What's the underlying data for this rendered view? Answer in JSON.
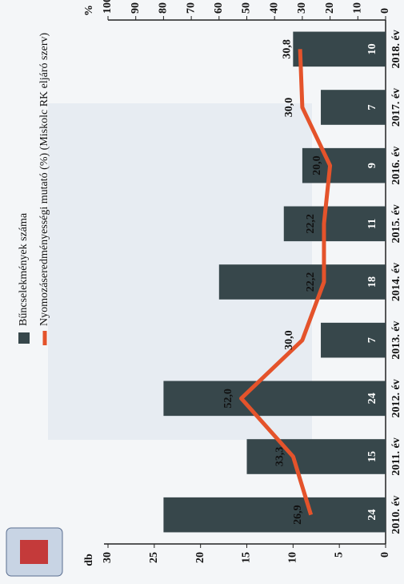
{
  "chart_data": {
    "type": "bar-line",
    "categories": [
      "2010. év",
      "2011. év",
      "2012. év",
      "2013. év",
      "2014. év",
      "2015. év",
      "2016. év",
      "2017. év",
      "2018. év"
    ],
    "series": [
      {
        "name": "Bűncselekmények száma",
        "color": "#37474b",
        "type": "bar",
        "values": [
          24,
          15,
          24,
          7,
          18,
          11,
          9,
          7,
          10
        ]
      },
      {
        "name": "Nyomozáseredményességi mutató (%) (Miskolc RK eljáró szerv)",
        "color": "#e4532b",
        "type": "line",
        "axis": "y2",
        "values": [
          26.9,
          33.3,
          52.0,
          30.0,
          22.2,
          22.2,
          20.0,
          30.0,
          30.8
        ],
        "value_labels": [
          "26,9",
          "33,3",
          "52,0",
          "30,0",
          "22,2",
          "22,2",
          "20,0",
          "30,0",
          "30,8"
        ]
      }
    ],
    "ylabel": "db",
    "y2label": "%",
    "ylim": [
      0,
      30
    ],
    "yticks": [
      0,
      5,
      10,
      15,
      20,
      25,
      30
    ],
    "y2lim": [
      0,
      100
    ],
    "y2ticks": [
      0,
      10,
      20,
      30,
      40,
      50,
      60,
      70,
      80,
      90,
      100
    ],
    "grid": false,
    "legend": "top-left"
  }
}
